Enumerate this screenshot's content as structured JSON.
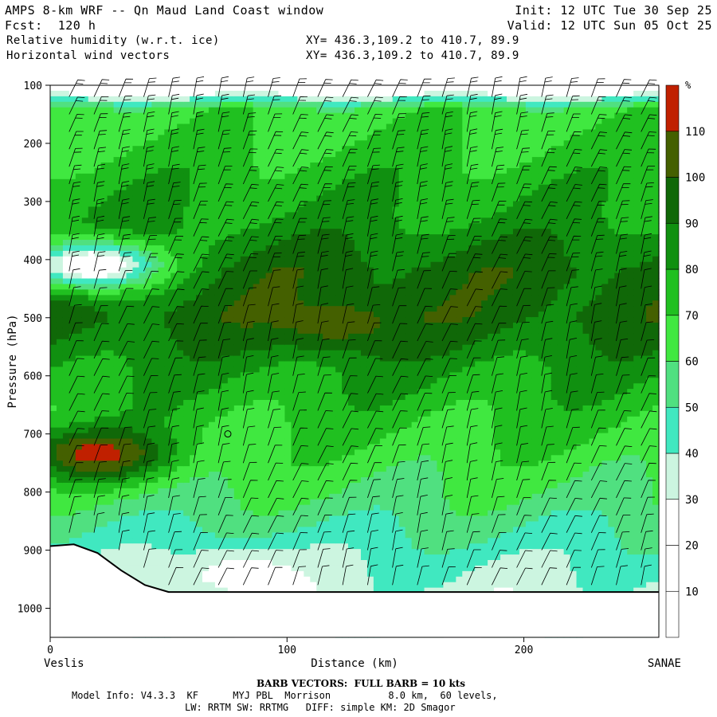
{
  "header": {
    "title": "AMPS 8-km WRF -- Qn Maud Land Coast window",
    "fcst": "Fcst:  120 h",
    "field1": "Relative humidity (w.r.t. ice)",
    "field2": "Horizontal wind vectors",
    "xy1": "XY= 436.3,109.2 to 410.7, 89.9",
    "xy2": "XY= 436.3,109.2 to 410.7, 89.9",
    "init": "Init: 12 UTC Tue 30 Sep 25",
    "valid": "Valid: 12 UTC Sun 05 Oct 25"
  },
  "footer": {
    "barb_note": "BARB VECTORS:  FULL BARB = 10 kts",
    "model_line1": "Model Info: V4.3.3  KF      MYJ PBL  Morrison          8.0 km,  60 levels,",
    "model_line2": "LW: RRTM SW: RRTMG   DIFF: simple KM: 2D Smagor"
  },
  "chart_data": {
    "type": "heatmap",
    "title": "Relative humidity (w.r.t. ice)",
    "xlabel": "Distance (km)",
    "ylabel": "Pressure (hPa)",
    "x_ticks": [
      0,
      100,
      200
    ],
    "y_ticks": [
      100,
      200,
      300,
      400,
      500,
      600,
      700,
      800,
      900,
      1000
    ],
    "xlim": [
      0,
      257
    ],
    "ylim": [
      100,
      1050
    ],
    "x_left_label": "Veslis",
    "x_right_label": "SANAE",
    "colorbar": {
      "unit": "%",
      "levels": [
        10,
        20,
        30,
        40,
        50,
        60,
        70,
        80,
        90,
        100,
        110
      ],
      "colors": [
        "#ffffff",
        "#ffffff",
        "#ffffff",
        "#ccf5e0",
        "#40e8c0",
        "#50e080",
        "#40e840",
        "#20c020",
        "#109010",
        "#106808",
        "#446000",
        "#c02000"
      ]
    },
    "field_bands": [
      {
        "p": 100,
        "rh": 5
      },
      {
        "p": 140,
        "rh": 65
      },
      {
        "p": 250,
        "rh": 75
      },
      {
        "p": 320,
        "rh": 80
      },
      {
        "p": 420,
        "rh": 95
      },
      {
        "p": 500,
        "rh": 95
      },
      {
        "p": 600,
        "rh": 80
      },
      {
        "p": 700,
        "rh": 70
      },
      {
        "p": 800,
        "rh": 60
      },
      {
        "p": 900,
        "rh": 45
      },
      {
        "p": 975,
        "rh": 35
      }
    ],
    "features": [
      {
        "name": "dry upper-left",
        "x": 18,
        "p": 410,
        "rh": 15
      },
      {
        "name": "moist band 700hPa",
        "x": 20,
        "p": 735,
        "rh": 115
      },
      {
        "name": "moist 500hPa patch",
        "x": 120,
        "p": 510,
        "rh": 105
      },
      {
        "name": "dry low-level",
        "x": 80,
        "p": 940,
        "rh": 25
      }
    ],
    "terrain": {
      "x": [
        0,
        10,
        20,
        30,
        40,
        50,
        100,
        150,
        200,
        257
      ],
      "p": [
        893,
        890,
        905,
        935,
        960,
        972,
        972,
        972,
        972,
        972
      ]
    },
    "wind_barb_speed_kts": 10
  }
}
